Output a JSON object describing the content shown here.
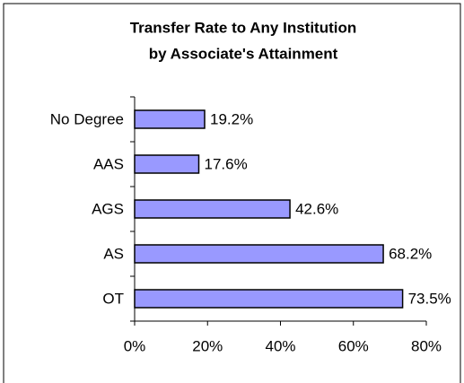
{
  "chart_data": {
    "type": "bar",
    "orientation": "horizontal",
    "title": [
      "Transfer Rate to Any Institution",
      "by Associate's Attainment"
    ],
    "categories": [
      "No Degree",
      "AAS",
      "AGS",
      "AS",
      "OT"
    ],
    "values": [
      19.2,
      17.6,
      42.6,
      68.2,
      73.5
    ],
    "value_labels": [
      "19.2%",
      "17.6%",
      "42.6%",
      "68.2%",
      "73.5%"
    ],
    "color": "#9999ff",
    "xlim": [
      0,
      80
    ],
    "xticks": [
      {
        "value": 0,
        "label": "0%"
      },
      {
        "value": 20,
        "label": "20%"
      },
      {
        "value": 40,
        "label": "40%"
      },
      {
        "value": 60,
        "label": "60%"
      },
      {
        "value": 80,
        "label": "80%"
      }
    ],
    "grid": false
  }
}
